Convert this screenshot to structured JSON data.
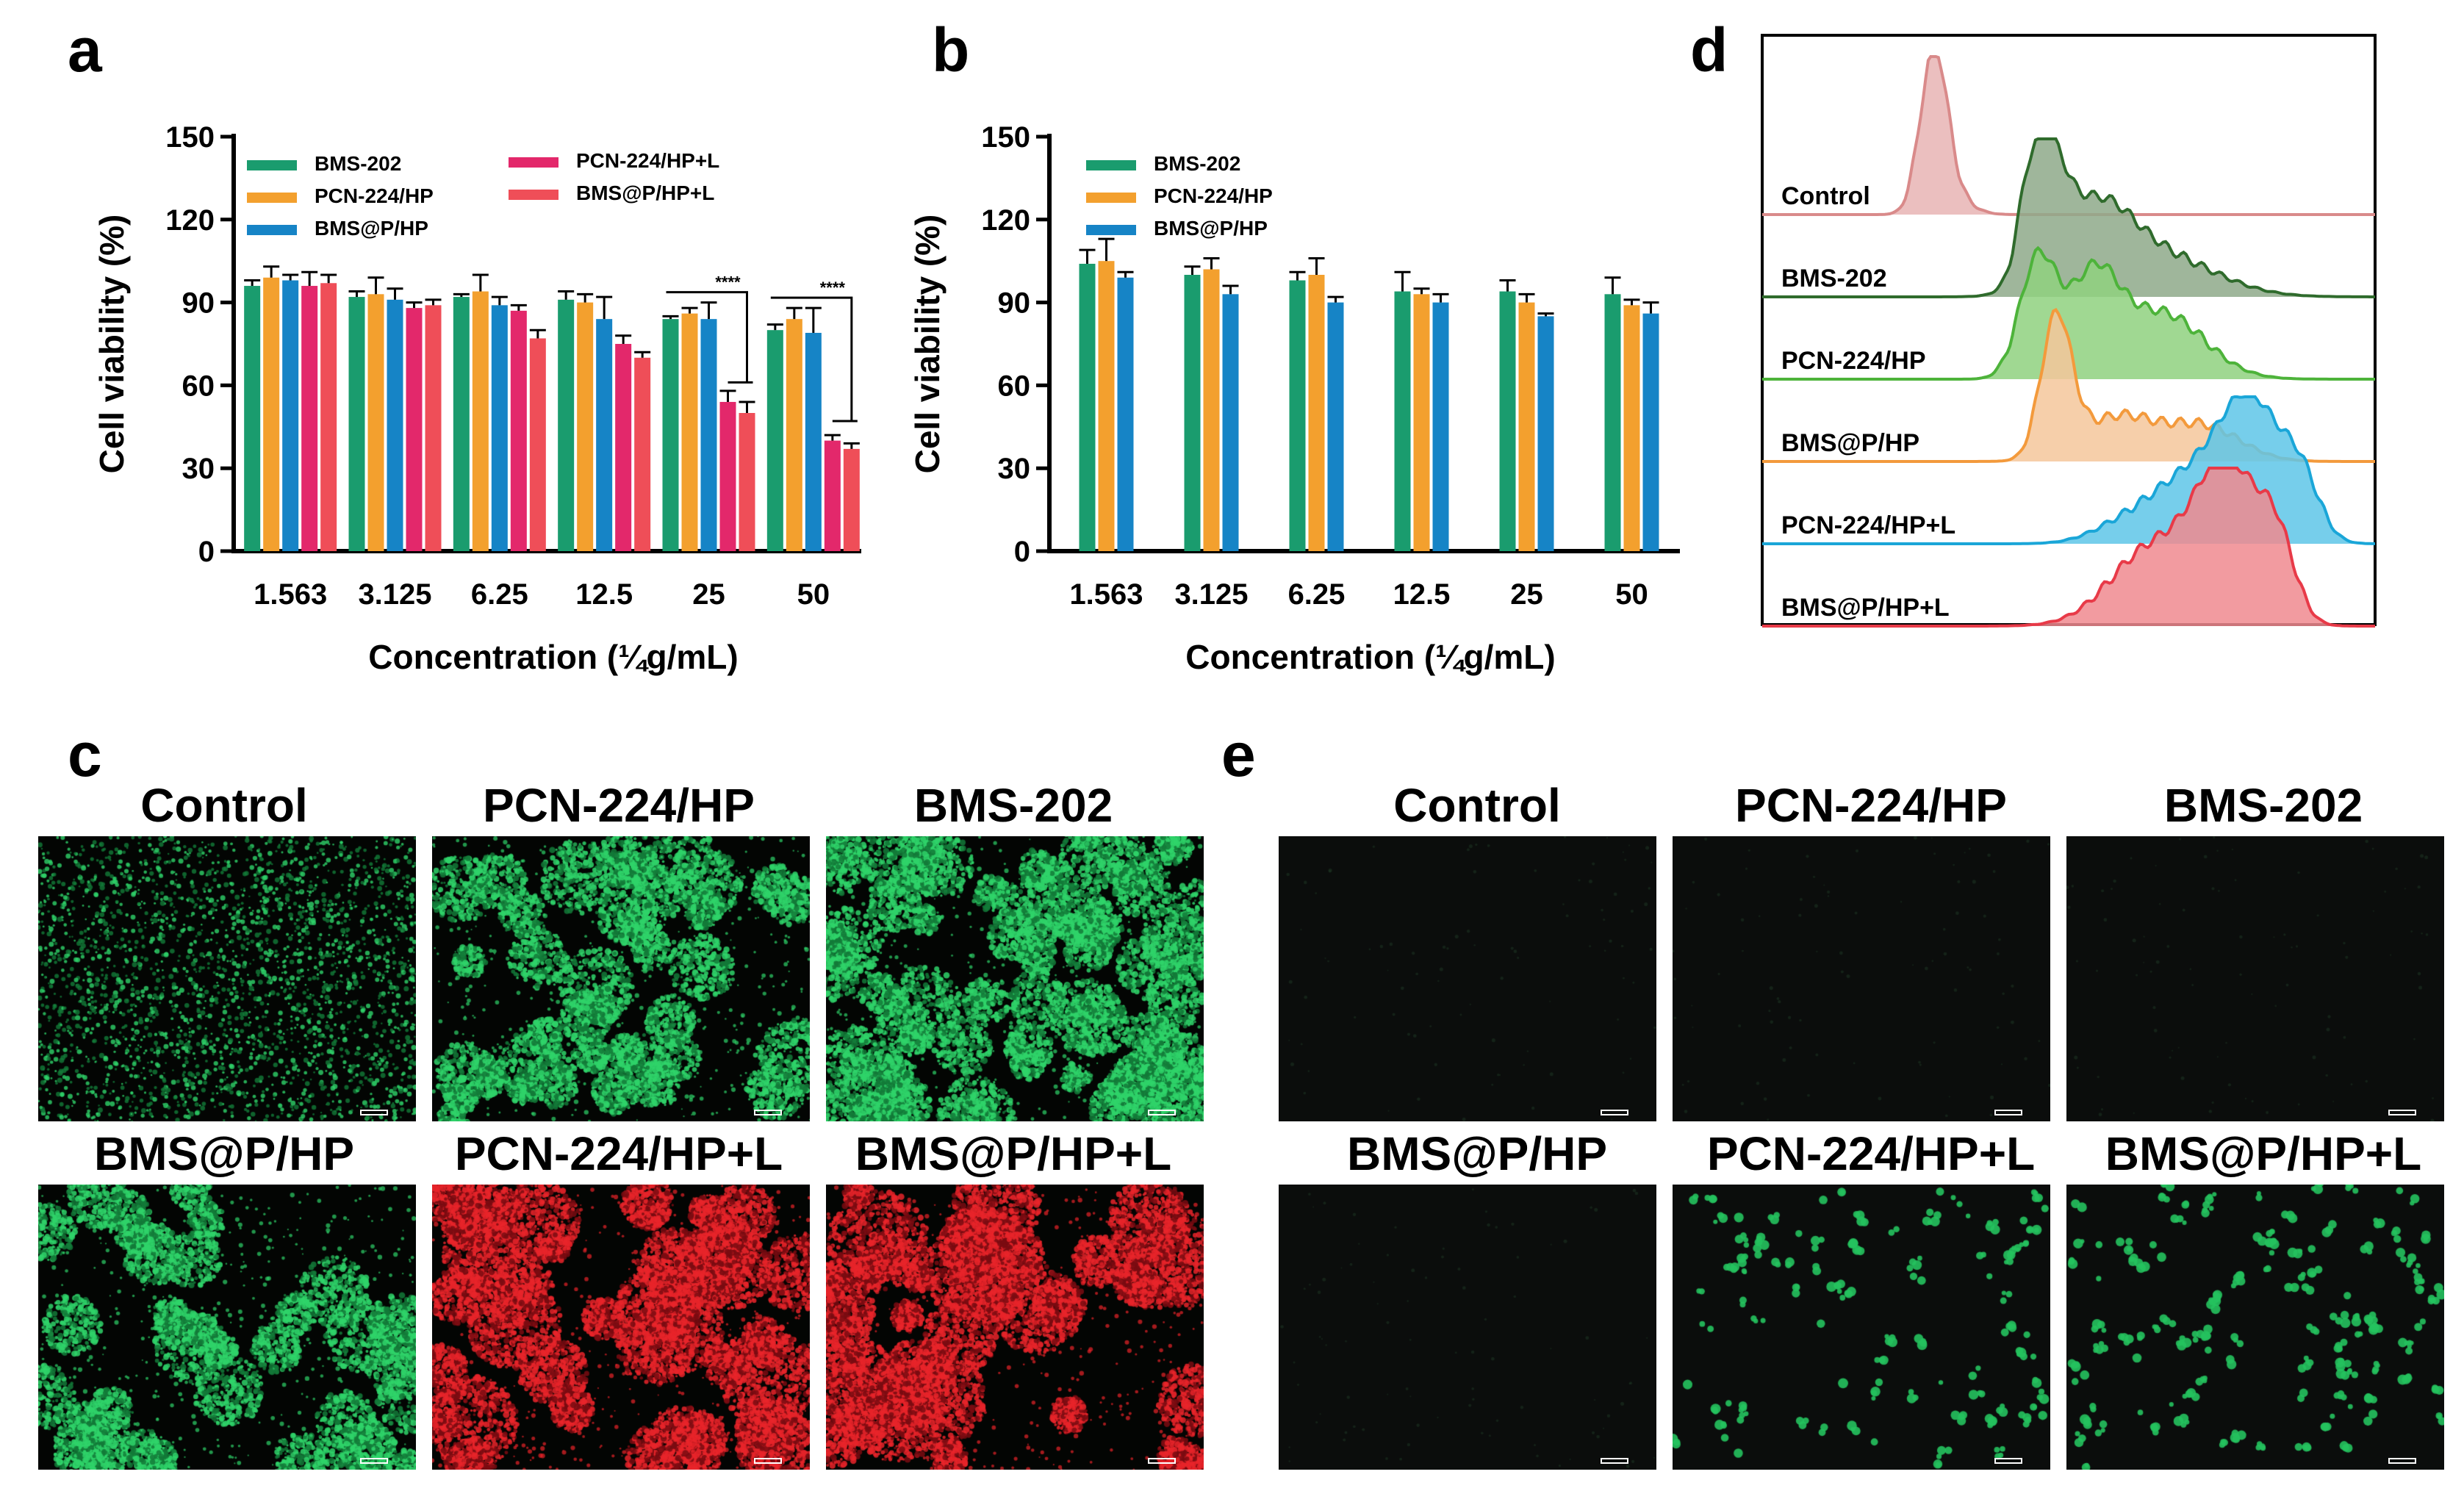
{
  "panel_labels": {
    "a": "a",
    "b": "b",
    "c": "c",
    "d": "d",
    "e": "e"
  },
  "colors": {
    "BMS-202": "#1a9c6e",
    "PCN-224/HP": "#f3a02e",
    "BMS@P/HP": "#1684c6",
    "PCN-224/HP+L": "#e3286b",
    "BMS@P/HP+L": "#ef4e58"
  },
  "chart_data": [
    {
      "id": "a",
      "type": "bar",
      "xlabel": "Concentration (¼g/mL)",
      "ylabel": "Cell viability (%)",
      "ylim": [
        0,
        150
      ],
      "yticks": [
        "0",
        "30",
        "60",
        "90",
        "120",
        "150"
      ],
      "categories": [
        "1.563",
        "3.125",
        "6.25",
        "12.5",
        "25",
        "50"
      ],
      "legend_placement": "top",
      "series": [
        {
          "name": "BMS-202",
          "values": [
            96,
            92,
            92,
            91,
            84,
            80
          ],
          "errors": [
            2,
            2,
            1,
            3,
            1,
            2
          ]
        },
        {
          "name": "PCN-224/HP",
          "values": [
            99,
            93,
            94,
            90,
            86,
            84
          ],
          "errors": [
            4,
            6,
            6,
            3,
            2,
            4
          ]
        },
        {
          "name": "BMS@P/HP",
          "values": [
            98,
            91,
            89,
            84,
            84,
            79
          ],
          "errors": [
            2,
            4,
            3,
            8,
            6,
            9
          ]
        },
        {
          "name": "PCN-224/HP+L",
          "values": [
            96,
            88,
            87,
            75,
            54,
            40
          ],
          "errors": [
            5,
            2,
            2,
            3,
            4,
            2
          ]
        },
        {
          "name": "BMS@P/HP+L",
          "values": [
            97,
            89,
            77,
            70,
            50,
            37
          ],
          "errors": [
            3,
            2,
            3,
            2,
            4,
            2
          ]
        }
      ],
      "significance": [
        {
          "category": "25",
          "label": "****"
        },
        {
          "category": "50",
          "label": "****"
        }
      ]
    },
    {
      "id": "b",
      "type": "bar",
      "xlabel": "Concentration (¼g/mL)",
      "ylabel": "Cell viability (%)",
      "ylim": [
        0,
        150
      ],
      "yticks": [
        "0",
        "30",
        "60",
        "90",
        "120",
        "150"
      ],
      "categories": [
        "1.563",
        "3.125",
        "6.25",
        "12.5",
        "25",
        "50"
      ],
      "legend_placement": "top-left",
      "series": [
        {
          "name": "BMS-202",
          "values": [
            104,
            100,
            98,
            94,
            94,
            93
          ],
          "errors": [
            5,
            3,
            3,
            7,
            4,
            6
          ]
        },
        {
          "name": "PCN-224/HP",
          "values": [
            105,
            102,
            100,
            93,
            90,
            89
          ],
          "errors": [
            8,
            4,
            6,
            2,
            3,
            2
          ]
        },
        {
          "name": "BMS@P/HP",
          "values": [
            99,
            93,
            90,
            90,
            85,
            86
          ],
          "errors": [
            2,
            3,
            2,
            3,
            1,
            4
          ]
        }
      ]
    },
    {
      "id": "d",
      "type": "area",
      "kind": "flow cytometry histogram overlay",
      "series": [
        {
          "name": "Control",
          "color": "#e8b4b4",
          "stroke": "#d98a8a",
          "peak": 0.28
        },
        {
          "name": "BMS-202",
          "color": "#8ea98a",
          "stroke": "#2f6b2c",
          "peak": 0.45
        },
        {
          "name": "PCN-224/HP",
          "color": "#8fd17f",
          "stroke": "#4db33a",
          "peak": 0.45
        },
        {
          "name": "BMS@P/HP",
          "color": "#f5c79b",
          "stroke": "#f39a3c",
          "peak": 0.48
        },
        {
          "name": "PCN-224/HP+L",
          "color": "#5ec6e8",
          "stroke": "#1aa6d8",
          "peak": 0.8
        },
        {
          "name": "BMS@P/HP+L",
          "color": "#f08a8f",
          "stroke": "#e83a48",
          "peak": 0.76
        }
      ]
    }
  ],
  "panel_c": {
    "titles": [
      "Control",
      "PCN-224/HP",
      "BMS-202",
      "BMS@P/HP",
      "PCN-224/HP+L",
      "BMS@P/HP+L"
    ]
  },
  "panel_e": {
    "titles": [
      "Control",
      "PCN-224/HP",
      "BMS-202",
      "BMS@P/HP",
      "PCN-224/HP+L",
      "BMS@P/HP+L"
    ]
  }
}
